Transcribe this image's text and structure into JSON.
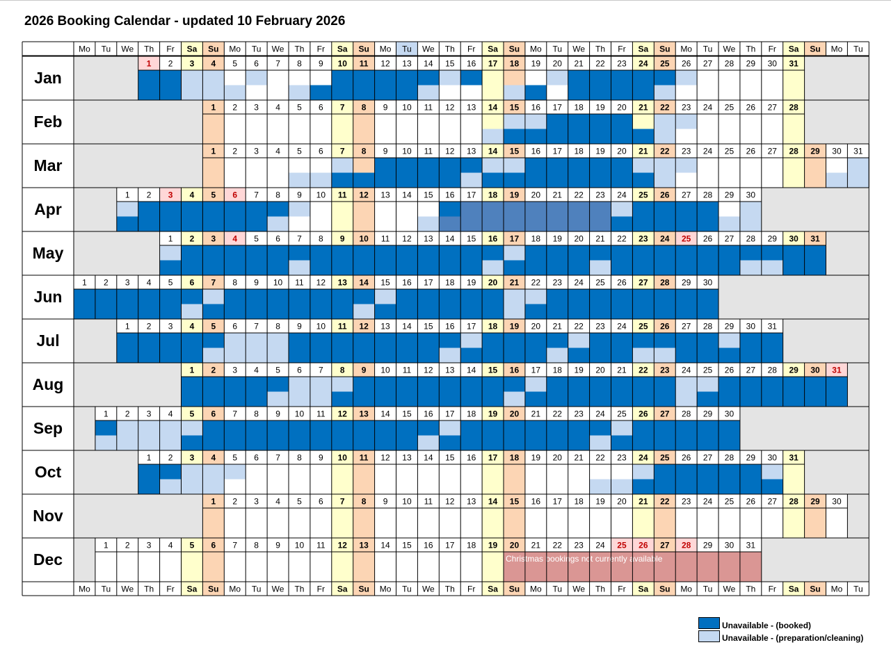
{
  "title": "2026 Booking Calendar - updated 10 February 2026",
  "weekday_headers": [
    "Mo",
    "Tu",
    "We",
    "Th",
    "Fr",
    "Sa",
    "Su",
    "Mo",
    "Tu",
    "We",
    "Th",
    "Fr",
    "Sa",
    "Su",
    "Mo",
    "Tu",
    "We",
    "Th",
    "Fr",
    "Sa",
    "Su",
    "Mo",
    "Tu",
    "We",
    "Th",
    "Fr",
    "Sa",
    "Su",
    "Mo",
    "Tu",
    "We",
    "Th",
    "Fr",
    "Sa",
    "Su",
    "Mo",
    "Tu"
  ],
  "colors": {
    "booked": "#0070C0",
    "cleaning": "#C5D9F1",
    "saturday": "#FFFFCC",
    "sunday": "#FCD5B4",
    "holiday": "#FFD7D7",
    "holiday_text": "#C00000",
    "empty": "#E4E4E4",
    "christmas": "#DA9694",
    "highlight": "#4F81BD"
  },
  "months": [
    {
      "name": "Jan",
      "offset": 3,
      "days": 31,
      "holidays": [
        1
      ],
      "top": {
        "booked": [
          [
            1,
            2
          ],
          [
            10,
            14
          ],
          [
            16,
            16
          ],
          [
            21,
            25
          ]
        ],
        "cleaning": [
          [
            3,
            4
          ],
          [
            6,
            6
          ],
          [
            15,
            15
          ],
          [
            20,
            20
          ],
          [
            24,
            26
          ]
        ]
      },
      "bottom": {
        "booked": [
          [
            1,
            2
          ],
          [
            9,
            13
          ],
          [
            19,
            19
          ],
          [
            21,
            24
          ]
        ],
        "cleaning": [
          [
            3,
            5
          ],
          [
            8,
            8
          ],
          [
            14,
            14
          ],
          [
            18,
            18
          ],
          [
            25,
            25
          ]
        ]
      }
    },
    {
      "name": "Feb",
      "offset": 6,
      "days": 28,
      "holidays": [],
      "top": {
        "booked": [
          [
            17,
            20
          ]
        ],
        "cleaning": [
          [
            15,
            16
          ],
          [
            22,
            23
          ]
        ]
      },
      "bottom": {
        "booked": [
          [
            15,
            21
          ]
        ],
        "cleaning": [
          [
            14,
            14
          ],
          [
            22,
            22
          ]
        ]
      }
    },
    {
      "name": "Mar",
      "offset": 6,
      "days": 31,
      "holidays": [],
      "top": {
        "booked": [
          [
            9,
            13
          ],
          [
            16,
            20
          ]
        ],
        "cleaning": [
          [
            7,
            7
          ],
          [
            14,
            14
          ],
          [
            15,
            15
          ],
          [
            21,
            21
          ],
          [
            22,
            23
          ],
          [
            31,
            31
          ]
        ]
      },
      "bottom": {
        "booked": [
          [
            7,
            12
          ],
          [
            14,
            14
          ],
          [
            15,
            20
          ],
          [
            21,
            21
          ]
        ],
        "cleaning": [
          [
            5,
            6
          ],
          [
            13,
            13
          ],
          [
            22,
            22
          ],
          [
            30,
            31
          ]
        ]
      }
    },
    {
      "name": "Apr",
      "offset": 2,
      "days": 30,
      "holidays": [
        3,
        6
      ],
      "top": {
        "booked": [
          [
            2,
            8
          ],
          [
            16,
            16
          ],
          [
            25,
            28
          ]
        ],
        "cleaning": [
          [
            1,
            1
          ],
          [
            9,
            9
          ],
          [
            16,
            16
          ],
          [
            24,
            24
          ],
          [
            30,
            30
          ]
        ],
        "highlight": [
          [
            17,
            23
          ]
        ]
      },
      "bottom": {
        "booked": [
          [
            1,
            7
          ],
          [
            16,
            16
          ],
          [
            24,
            28
          ]
        ],
        "cleaning": [
          [
            8,
            8
          ],
          [
            15,
            15
          ],
          [
            29,
            30
          ]
        ],
        "highlight": [
          [
            16,
            23
          ]
        ]
      }
    },
    {
      "name": "May",
      "offset": 4,
      "days": 31,
      "holidays": [
        4,
        25
      ],
      "top": {
        "booked": [
          [
            2,
            16
          ],
          [
            18,
            31
          ]
        ],
        "cleaning": [
          [
            1,
            1
          ],
          [
            9,
            9
          ],
          [
            17,
            17
          ],
          [
            29,
            29
          ]
        ]
      },
      "bottom": {
        "booked": [
          [
            1,
            6
          ],
          [
            8,
            15
          ],
          [
            17,
            20
          ],
          [
            22,
            27
          ],
          [
            30,
            31
          ]
        ],
        "cleaning": [
          [
            7,
            7
          ],
          [
            16,
            16
          ],
          [
            21,
            21
          ],
          [
            28,
            29
          ]
        ]
      }
    },
    {
      "name": "Jun",
      "offset": 0,
      "days": 30,
      "holidays": [],
      "top": {
        "booked": [
          [
            1,
            6
          ],
          [
            8,
            14
          ],
          [
            16,
            20
          ],
          [
            23,
            30
          ]
        ],
        "cleaning": [
          [
            7,
            7
          ],
          [
            15,
            15
          ],
          [
            21,
            22
          ]
        ]
      },
      "bottom": {
        "booked": [
          [
            1,
            5
          ],
          [
            7,
            13
          ],
          [
            15,
            20
          ],
          [
            22,
            30
          ]
        ],
        "cleaning": [
          [
            6,
            6
          ],
          [
            14,
            14
          ],
          [
            21,
            21
          ]
        ]
      }
    },
    {
      "name": "Jul",
      "offset": 2,
      "days": 31,
      "holidays": [],
      "top": {
        "booked": [
          [
            1,
            5
          ],
          [
            9,
            16
          ],
          [
            18,
            21
          ],
          [
            23,
            28
          ],
          [
            30,
            31
          ]
        ],
        "cleaning": [
          [
            6,
            8
          ],
          [
            17,
            17
          ],
          [
            22,
            22
          ],
          [
            29,
            29
          ]
        ]
      },
      "bottom": {
        "booked": [
          [
            1,
            4
          ],
          [
            9,
            15
          ],
          [
            17,
            20
          ],
          [
            22,
            24
          ],
          [
            27,
            31
          ]
        ],
        "cleaning": [
          [
            5,
            8
          ],
          [
            16,
            16
          ],
          [
            21,
            21
          ],
          [
            25,
            26
          ]
        ]
      }
    },
    {
      "name": "Aug",
      "offset": 5,
      "days": 31,
      "holidays": [
        31
      ],
      "top": {
        "booked": [
          [
            1,
            5
          ],
          [
            9,
            16
          ],
          [
            18,
            23
          ],
          [
            26,
            31
          ]
        ],
        "cleaning": [
          [
            6,
            8
          ],
          [
            17,
            17
          ],
          [
            24,
            25
          ]
        ]
      },
      "bottom": {
        "booked": [
          [
            1,
            4
          ],
          [
            8,
            15
          ],
          [
            17,
            23
          ],
          [
            25,
            31
          ]
        ],
        "cleaning": [
          [
            5,
            7
          ],
          [
            16,
            16
          ],
          [
            24,
            24
          ]
        ]
      }
    },
    {
      "name": "Sep",
      "offset": 1,
      "days": 30,
      "holidays": [],
      "top": {
        "booked": [
          [
            1,
            1
          ],
          [
            6,
            16
          ],
          [
            18,
            24
          ],
          [
            26,
            30
          ]
        ],
        "cleaning": [
          [
            2,
            5
          ],
          [
            17,
            17
          ],
          [
            25,
            25
          ]
        ]
      },
      "bottom": {
        "booked": [
          [
            5,
            15
          ],
          [
            17,
            23
          ],
          [
            25,
            30
          ]
        ],
        "cleaning": [
          [
            1,
            4
          ],
          [
            16,
            16
          ],
          [
            24,
            24
          ]
        ]
      }
    },
    {
      "name": "Oct",
      "offset": 3,
      "days": 31,
      "holidays": [],
      "top": {
        "booked": [
          [
            1,
            2
          ],
          [
            25,
            29
          ]
        ],
        "cleaning": [
          [
            3,
            5
          ],
          [
            24,
            24
          ],
          [
            30,
            30
          ]
        ]
      },
      "bottom": {
        "booked": [
          [
            1,
            1
          ],
          [
            24,
            30
          ]
        ],
        "cleaning": [
          [
            2,
            4
          ],
          [
            22,
            23
          ]
        ]
      }
    },
    {
      "name": "Nov",
      "offset": 6,
      "days": 30,
      "holidays": [],
      "top": {},
      "bottom": {}
    },
    {
      "name": "Dec",
      "offset": 1,
      "days": 31,
      "holidays": [
        25,
        26,
        28
      ],
      "top": {},
      "bottom": {},
      "notice": {
        "from": 20,
        "to": 31,
        "text": "Christmas bookings not currently available"
      }
    }
  ],
  "legend": [
    {
      "label": "Unavailable - (booked)",
      "color": "#0070C0"
    },
    {
      "label": "Unavailable - (preparation/cleaning)",
      "color": "#C5D9F1"
    }
  ]
}
